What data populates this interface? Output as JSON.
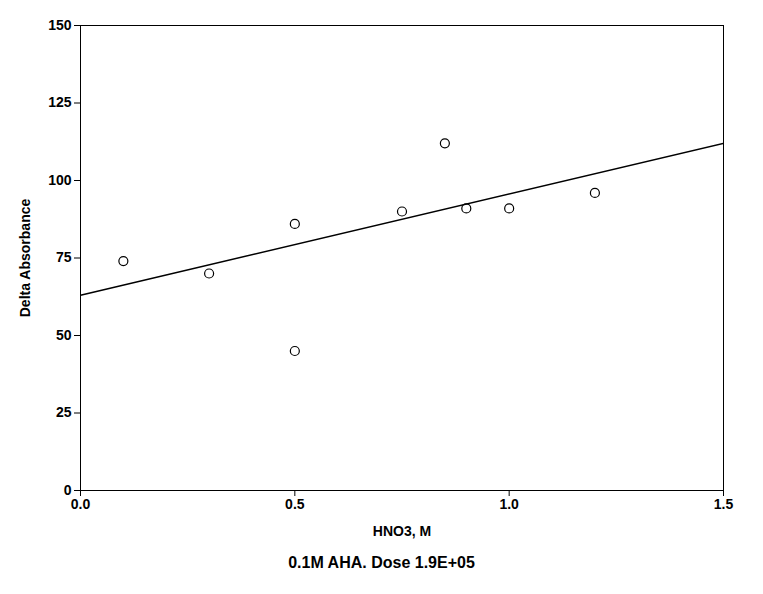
{
  "chart_data": {
    "type": "scatter",
    "subtitle": "0.1M AHA.   Dose 1.9E+05",
    "xlabel": "HNO3, M",
    "ylabel": "Delta Absorbance",
    "series": [
      {
        "type": "scatter",
        "marker": "circle",
        "color": "#000000",
        "x": [
          0.1,
          0.3,
          0.5,
          0.5,
          0.75,
          0.85,
          0.9,
          1.0,
          1.2
        ],
        "values": [
          74,
          70,
          45,
          86,
          90,
          112,
          91,
          91,
          96
        ]
      },
      {
        "type": "line",
        "line_style": "solid",
        "color": "#000000",
        "x": [
          0.0,
          1.5
        ],
        "values": [
          63.0,
          112.0
        ]
      }
    ],
    "xlim": [
      0.0,
      1.5
    ],
    "ylim": [
      0,
      150
    ],
    "xticks": [
      {
        "value": 0.0,
        "label": "0.0"
      },
      {
        "value": 0.5,
        "label": "0.5"
      },
      {
        "value": 1.0,
        "label": "1.0"
      },
      {
        "value": 1.5,
        "label": "1.5"
      }
    ],
    "yticks": [
      0,
      25,
      50,
      75,
      100,
      125,
      150
    ],
    "grid": false
  }
}
